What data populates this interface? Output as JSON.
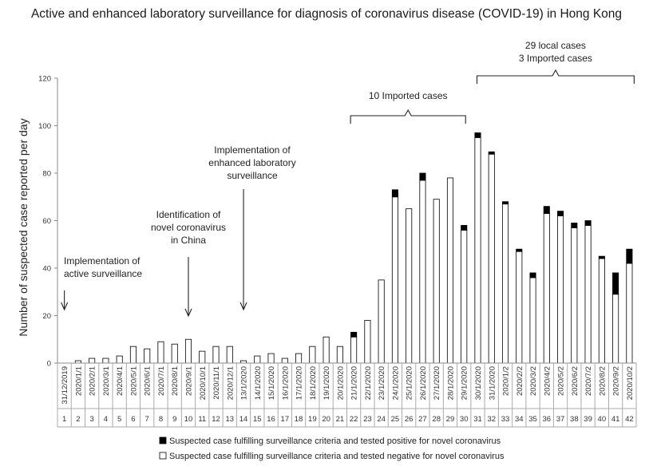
{
  "chart_data": {
    "type": "bar",
    "stacked": true,
    "title": "Active and enhanced laboratory surveillance for diagnosis of coronavirus disease (COVID-19) in Hong Kong",
    "ylabel": "Number of suspected case reported per day",
    "ylim": [
      0,
      120
    ],
    "yticks": [
      0,
      20,
      40,
      60,
      80,
      100,
      120
    ],
    "grid": false,
    "legend_position": "bottom",
    "day_numbers": [
      "1",
      "2",
      "3",
      "4",
      "5",
      "6",
      "7",
      "8",
      "9",
      "10",
      "11",
      "12",
      "13",
      "14",
      "15",
      "16",
      "17",
      "18",
      "19",
      "20",
      "21",
      "22",
      "23",
      "24",
      "25",
      "26",
      "27",
      "28",
      "29",
      "30",
      "31",
      "32",
      "33",
      "34",
      "35",
      "36",
      "37",
      "38",
      "39",
      "40",
      "41",
      "42"
    ],
    "dates": [
      "31/12/2019",
      "2020/1/1",
      "2020/2/1",
      "2020/3/1",
      "2020/4/1",
      "2020/5/1",
      "2020/6/1",
      "2020/7/1",
      "2020/8/1",
      "2020/9/1",
      "2020/10/1",
      "2020/11/1",
      "2020/12/1",
      "13/1/2020",
      "14/1/2020",
      "15/1/2020",
      "16/1/2020",
      "17/1/2020",
      "18/1/2020",
      "19/1/2020",
      "20/1/2020",
      "21/1/2020",
      "22/1/2020",
      "23/1/2020",
      "24/1/2020",
      "25/1/2020",
      "26/1/2020",
      "27/1/2020",
      "28/1/2020",
      "29/1/2020",
      "30/1/2020",
      "31/1/2020",
      "2020/1/2",
      "2020/2/2",
      "2020/3/2",
      "2020/4/2",
      "2020/5/2",
      "2020/6/2",
      "2020/7/2",
      "2020/8/2",
      "2020/9/2",
      "2020/10/2"
    ],
    "series": [
      {
        "name": "Suspected case fulfilling surveillance criteria and tested negative for novel coronavirus",
        "color": "#ffffff",
        "values": [
          0,
          1,
          2,
          2,
          3,
          7,
          6,
          9,
          8,
          10,
          5,
          7,
          7,
          1,
          3,
          4,
          2,
          4,
          7,
          11,
          7,
          11,
          18,
          35,
          70,
          65,
          77,
          69,
          78,
          56,
          95,
          88,
          67,
          47,
          36,
          63,
          62,
          57,
          58,
          44,
          29,
          42
        ]
      },
      {
        "name": "Suspected case fulfilling surveillance criteria and tested positive for novel coronavirus",
        "color": "#000000",
        "values": [
          0,
          0,
          0,
          0,
          0,
          0,
          0,
          0,
          0,
          0,
          0,
          0,
          0,
          0,
          0,
          0,
          0,
          0,
          0,
          0,
          0,
          2,
          0,
          0,
          3,
          0,
          3,
          0,
          0,
          2,
          2,
          1,
          1,
          1,
          2,
          3,
          2,
          2,
          2,
          1,
          9,
          6
        ]
      }
    ],
    "annotations": [
      {
        "lines": [
          "Implementation of",
          "active surveillance"
        ],
        "day": 1
      },
      {
        "lines": [
          "Identification of",
          "novel coronavirus",
          "in China"
        ],
        "day": 10
      },
      {
        "lines": [
          "Implementation of",
          "enhanced laboratory",
          "surveillance"
        ],
        "day": 14
      },
      {
        "lines": [
          "10 Imported cases"
        ],
        "from_day": 22,
        "to_day": 30
      },
      {
        "lines": [
          "29 local cases",
          "3 Imported cases"
        ],
        "from_day": 31,
        "to_day": 42
      }
    ]
  }
}
